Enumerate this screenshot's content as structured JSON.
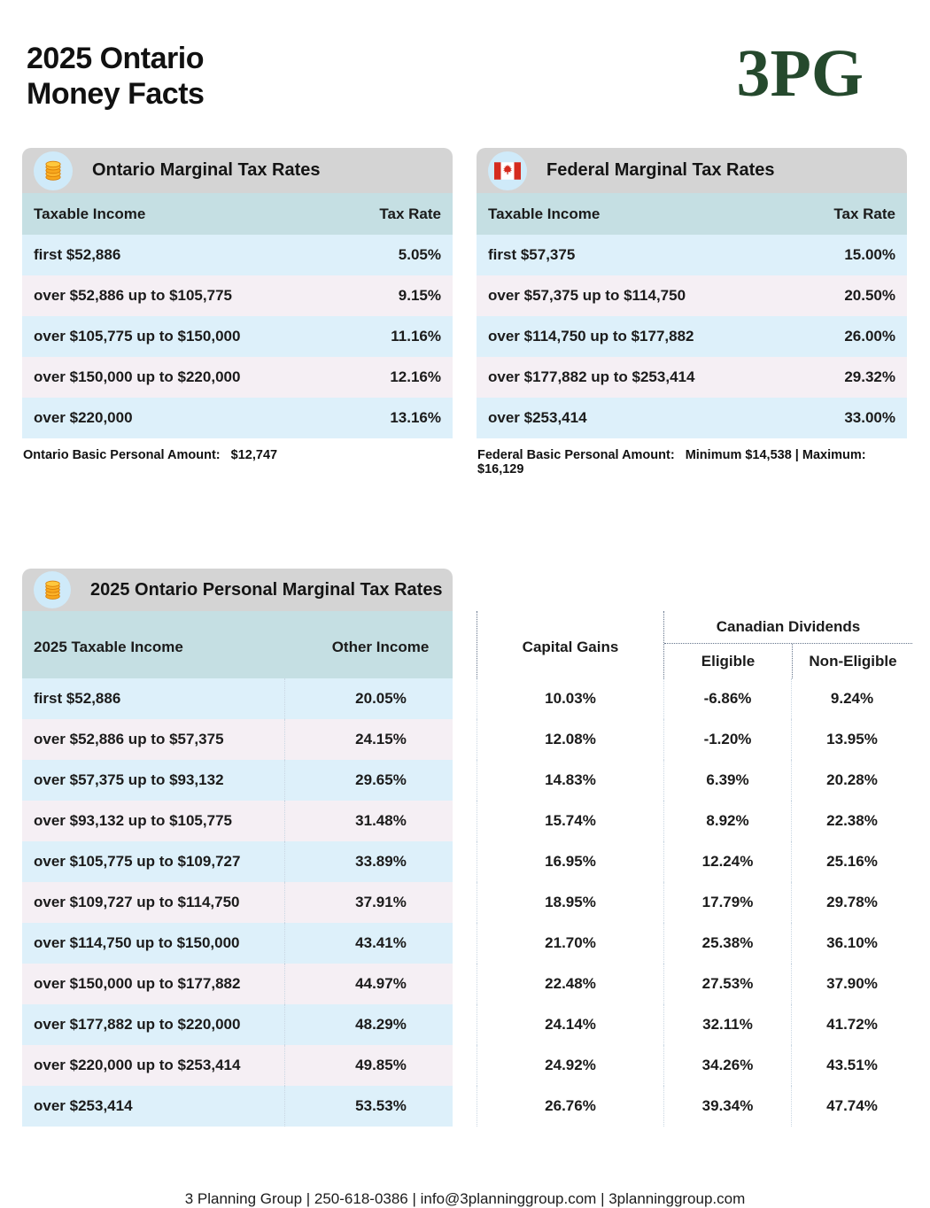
{
  "page": {
    "title_line1": "2025 Ontario",
    "title_line2": "Money Facts",
    "logo_text": "3PG",
    "footer_text": "3 Planning Group | 250-618-0386 | info@3planninggroup.com | 3planninggroup.com"
  },
  "colors": {
    "header_bar_gray": "#d4d4d4",
    "column_header_teal": "#c5dfe3",
    "row_blue": "#ddf0fa",
    "row_pink": "#f5eff4",
    "icon_circle_blue": "#cfeaf9",
    "logo_green": "#25492d",
    "flag_red": "#d52b1e",
    "coin_gold": "#f8a81d",
    "dotted_header_line": "#64748b",
    "dotted_body_line": "#c9d6e2"
  },
  "ontario_table": {
    "icon": "coins-icon",
    "title": "Ontario Marginal Tax Rates",
    "columns": [
      "Taxable Income",
      "Tax Rate"
    ],
    "rows": [
      {
        "income": "first $52,886",
        "rate": "5.05%"
      },
      {
        "income": "over $52,886 up to $105,775",
        "rate": "9.15%"
      },
      {
        "income": "over $105,775 up to $150,000",
        "rate": "11.16%"
      },
      {
        "income": "over $150,000 up to $220,000",
        "rate": "12.16%"
      },
      {
        "income": "over $220,000",
        "rate": "13.16%"
      }
    ],
    "footnote_label": "Ontario Basic Personal Amount:",
    "footnote_value": "$12,747"
  },
  "federal_table": {
    "icon": "canada-flag-icon",
    "title": "Federal Marginal Tax Rates",
    "columns": [
      "Taxable Income",
      "Tax Rate"
    ],
    "rows": [
      {
        "income": "first $57,375",
        "rate": "15.00%"
      },
      {
        "income": "over $57,375 up to $114,750",
        "rate": "20.50%"
      },
      {
        "income": "over $114,750 up to $177,882",
        "rate": "26.00%"
      },
      {
        "income": "over $177,882 up to $253,414",
        "rate": "29.32%"
      },
      {
        "income": "over $253,414",
        "rate": "33.00%"
      }
    ],
    "footnote_label": "Federal Basic Personal Amount:",
    "footnote_value": "Minimum $14,538 | Maximum: $16,129"
  },
  "personal_table": {
    "icon": "coins-icon",
    "title": "2025 Ontario Personal Marginal Tax Rates",
    "columns": {
      "income": "2025 Taxable Income",
      "other": "Other Income",
      "capital": "Capital Gains",
      "dividends": "Canadian Dividends",
      "eligible": "Eligible",
      "noneligible": "Non-Eligible"
    },
    "rows": [
      {
        "income": "first $52,886",
        "other": "20.05%",
        "capital": "10.03%",
        "eligible": "-6.86%",
        "noneligible": "9.24%"
      },
      {
        "income": "over $52,886 up to $57,375",
        "other": "24.15%",
        "capital": "12.08%",
        "eligible": "-1.20%",
        "noneligible": "13.95%"
      },
      {
        "income": "over $57,375 up to $93,132",
        "other": "29.65%",
        "capital": "14.83%",
        "eligible": "6.39%",
        "noneligible": "20.28%"
      },
      {
        "income": "over $93,132 up to $105,775",
        "other": "31.48%",
        "capital": "15.74%",
        "eligible": "8.92%",
        "noneligible": "22.38%"
      },
      {
        "income": "over $105,775 up to $109,727",
        "other": "33.89%",
        "capital": "16.95%",
        "eligible": "12.24%",
        "noneligible": "25.16%"
      },
      {
        "income": "over $109,727 up to $114,750",
        "other": "37.91%",
        "capital": "18.95%",
        "eligible": "17.79%",
        "noneligible": "29.78%"
      },
      {
        "income": "over $114,750 up to $150,000",
        "other": "43.41%",
        "capital": "21.70%",
        "eligible": "25.38%",
        "noneligible": "36.10%"
      },
      {
        "income": "over $150,000 up to $177,882",
        "other": "44.97%",
        "capital": "22.48%",
        "eligible": "27.53%",
        "noneligible": "37.90%"
      },
      {
        "income": "over $177,882 up to $220,000",
        "other": "48.29%",
        "capital": "24.14%",
        "eligible": "32.11%",
        "noneligible": "41.72%"
      },
      {
        "income": "over $220,000 up to $253,414",
        "other": "49.85%",
        "capital": "24.92%",
        "eligible": "34.26%",
        "noneligible": "43.51%"
      },
      {
        "income": "over $253,414",
        "other": "53.53%",
        "capital": "26.76%",
        "eligible": "39.34%",
        "noneligible": "47.74%"
      }
    ]
  }
}
